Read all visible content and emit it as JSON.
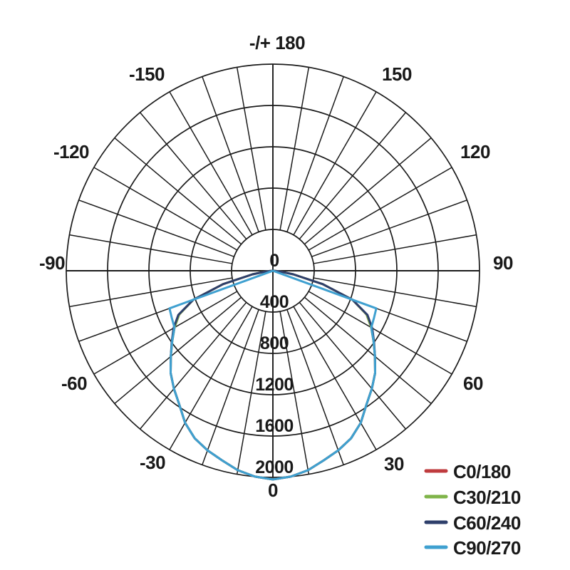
{
  "colors": {
    "background": "#ffffff",
    "grid": "#1b1b1b",
    "text": "#191919"
  },
  "chart_data": {
    "type": "line",
    "projection": "polar",
    "zero_angle_position": "bottom",
    "grid": true,
    "angle_axis": {
      "spoke_step_deg": 10,
      "label_step_deg": 30,
      "ticks": [
        {
          "angle": 180,
          "label": "-/+ 180"
        },
        {
          "angle": -150,
          "label": "-150"
        },
        {
          "angle": 150,
          "label": "150"
        },
        {
          "angle": -120,
          "label": "-120"
        },
        {
          "angle": 120,
          "label": "120"
        },
        {
          "angle": -90,
          "label": "-90"
        },
        {
          "angle": 90,
          "label": "90"
        },
        {
          "angle": -60,
          "label": "-60"
        },
        {
          "angle": 60,
          "label": "60"
        },
        {
          "angle": -30,
          "label": "-30"
        },
        {
          "angle": 30,
          "label": "30"
        },
        {
          "angle": 0,
          "label": "0"
        }
      ]
    },
    "radial_axis": {
      "min": 0,
      "max": 2000,
      "ring_step": 400,
      "tick_labels": [
        "0",
        "400",
        "800",
        "1200",
        "1600",
        "2000"
      ]
    },
    "series": [
      {
        "name": "C0/180",
        "color": "#bf3b3e",
        "points": [
          [
            -90,
            0
          ],
          [
            -85,
            60
          ],
          [
            -80,
            200
          ],
          [
            -75,
            500
          ],
          [
            -70,
            820
          ],
          [
            -65,
            1000
          ],
          [
            -60,
            1100
          ],
          [
            -55,
            1190
          ],
          [
            -50,
            1290
          ],
          [
            -45,
            1400
          ],
          [
            -40,
            1490
          ],
          [
            -35,
            1580
          ],
          [
            -30,
            1700
          ],
          [
            -25,
            1790
          ],
          [
            -20,
            1850
          ],
          [
            -15,
            1900
          ],
          [
            -10,
            1960
          ],
          [
            -5,
            2000
          ],
          [
            0,
            2020
          ],
          [
            5,
            2000
          ],
          [
            10,
            1960
          ],
          [
            15,
            1900
          ],
          [
            20,
            1850
          ],
          [
            25,
            1790
          ],
          [
            30,
            1700
          ],
          [
            35,
            1580
          ],
          [
            40,
            1490
          ],
          [
            45,
            1400
          ],
          [
            50,
            1290
          ],
          [
            55,
            1190
          ],
          [
            60,
            1100
          ],
          [
            65,
            1000
          ],
          [
            70,
            820
          ],
          [
            75,
            500
          ],
          [
            80,
            200
          ],
          [
            85,
            60
          ],
          [
            90,
            0
          ]
        ]
      },
      {
        "name": "C30/210",
        "color": "#7fb449",
        "points": [
          [
            -90,
            0
          ],
          [
            -85,
            60
          ],
          [
            -80,
            200
          ],
          [
            -75,
            500
          ],
          [
            -70,
            820
          ],
          [
            -65,
            1000
          ],
          [
            -60,
            1100
          ],
          [
            -55,
            1190
          ],
          [
            -50,
            1290
          ],
          [
            -45,
            1400
          ],
          [
            -40,
            1490
          ],
          [
            -35,
            1580
          ],
          [
            -30,
            1700
          ],
          [
            -25,
            1790
          ],
          [
            -20,
            1850
          ],
          [
            -15,
            1900
          ],
          [
            -10,
            1960
          ],
          [
            -5,
            2000
          ],
          [
            0,
            2020
          ],
          [
            5,
            2000
          ],
          [
            10,
            1960
          ],
          [
            15,
            1900
          ],
          [
            20,
            1850
          ],
          [
            25,
            1790
          ],
          [
            30,
            1700
          ],
          [
            35,
            1580
          ],
          [
            40,
            1490
          ],
          [
            45,
            1400
          ],
          [
            50,
            1290
          ],
          [
            55,
            1190
          ],
          [
            60,
            1100
          ],
          [
            65,
            1000
          ],
          [
            70,
            820
          ],
          [
            75,
            500
          ],
          [
            80,
            200
          ],
          [
            85,
            60
          ],
          [
            90,
            0
          ]
        ]
      },
      {
        "name": "C60/240",
        "color": "#2e3f6b",
        "points": [
          [
            -90,
            0
          ],
          [
            -85,
            60
          ],
          [
            -80,
            200
          ],
          [
            -75,
            500
          ],
          [
            -70,
            820
          ],
          [
            -65,
            1010
          ],
          [
            -60,
            1110
          ],
          [
            -55,
            1195
          ],
          [
            -50,
            1290
          ],
          [
            -45,
            1400
          ],
          [
            -40,
            1490
          ],
          [
            -35,
            1580
          ],
          [
            -30,
            1700
          ],
          [
            -25,
            1790
          ],
          [
            -20,
            1850
          ],
          [
            -15,
            1900
          ],
          [
            -10,
            1960
          ],
          [
            -5,
            2000
          ],
          [
            0,
            2020
          ],
          [
            5,
            2000
          ],
          [
            10,
            1960
          ],
          [
            15,
            1900
          ],
          [
            20,
            1850
          ],
          [
            25,
            1790
          ],
          [
            30,
            1700
          ],
          [
            35,
            1580
          ],
          [
            40,
            1490
          ],
          [
            45,
            1400
          ],
          [
            50,
            1290
          ],
          [
            55,
            1195
          ],
          [
            60,
            1110
          ],
          [
            65,
            1010
          ],
          [
            70,
            820
          ],
          [
            75,
            500
          ],
          [
            80,
            200
          ],
          [
            85,
            60
          ],
          [
            90,
            0
          ]
        ]
      },
      {
        "name": "C90/270",
        "color": "#3fa0d0",
        "points": [
          [
            -90,
            0
          ],
          [
            -70,
            1065
          ],
          [
            -65,
            1080
          ],
          [
            -60,
            1100
          ],
          [
            -55,
            1190
          ],
          [
            -50,
            1290
          ],
          [
            -45,
            1400
          ],
          [
            -40,
            1490
          ],
          [
            -35,
            1580
          ],
          [
            -30,
            1700
          ],
          [
            -25,
            1790
          ],
          [
            -20,
            1850
          ],
          [
            -15,
            1900
          ],
          [
            -10,
            1960
          ],
          [
            -5,
            2000
          ],
          [
            0,
            2020
          ],
          [
            5,
            2000
          ],
          [
            10,
            1960
          ],
          [
            15,
            1900
          ],
          [
            20,
            1850
          ],
          [
            25,
            1790
          ],
          [
            30,
            1700
          ],
          [
            35,
            1580
          ],
          [
            40,
            1490
          ],
          [
            45,
            1400
          ],
          [
            50,
            1290
          ],
          [
            55,
            1190
          ],
          [
            60,
            1100
          ],
          [
            65,
            1080
          ],
          [
            70,
            1065
          ],
          [
            90,
            0
          ]
        ]
      }
    ],
    "legend": {
      "position": "bottom-right",
      "items": [
        {
          "label": "C0/180",
          "color": "#bf3b3e"
        },
        {
          "label": "C30/210",
          "color": "#7fb449"
        },
        {
          "label": "C60/240",
          "color": "#2e3f6b"
        },
        {
          "label": "C90/270",
          "color": "#3fa0d0"
        }
      ]
    }
  }
}
